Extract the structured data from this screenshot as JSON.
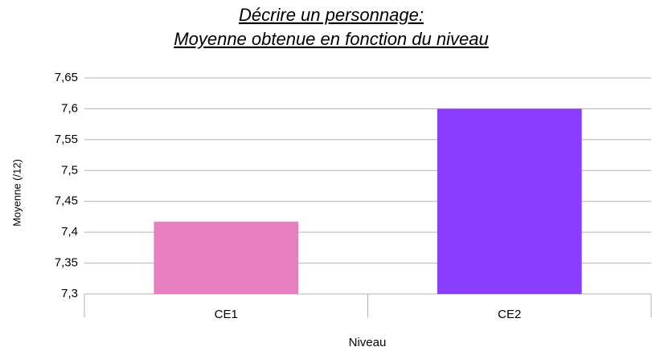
{
  "chart_data": {
    "type": "bar",
    "title": "Décrire un personnage:",
    "subtitle": "Moyenne obtenue en fonction du niveau",
    "x_label": "Niveau",
    "y_label": "Moyenne (/12)",
    "categories": [
      "CE1",
      "CE2"
    ],
    "values": [
      7.417,
      7.6
    ],
    "colors": [
      "#e87fc0",
      "#8b3dff"
    ],
    "ylim": [
      7.3,
      7.65
    ],
    "yticks": [
      {
        "value": 7.3,
        "label": "7,3"
      },
      {
        "value": 7.35,
        "label": "7,35"
      },
      {
        "value": 7.4,
        "label": "7,4"
      },
      {
        "value": 7.45,
        "label": "7,45"
      },
      {
        "value": 7.5,
        "label": "7,5"
      },
      {
        "value": 7.55,
        "label": "7,55"
      },
      {
        "value": 7.6,
        "label": "7,6"
      },
      {
        "value": 7.65,
        "label": "7,65"
      }
    ],
    "grid": true
  }
}
